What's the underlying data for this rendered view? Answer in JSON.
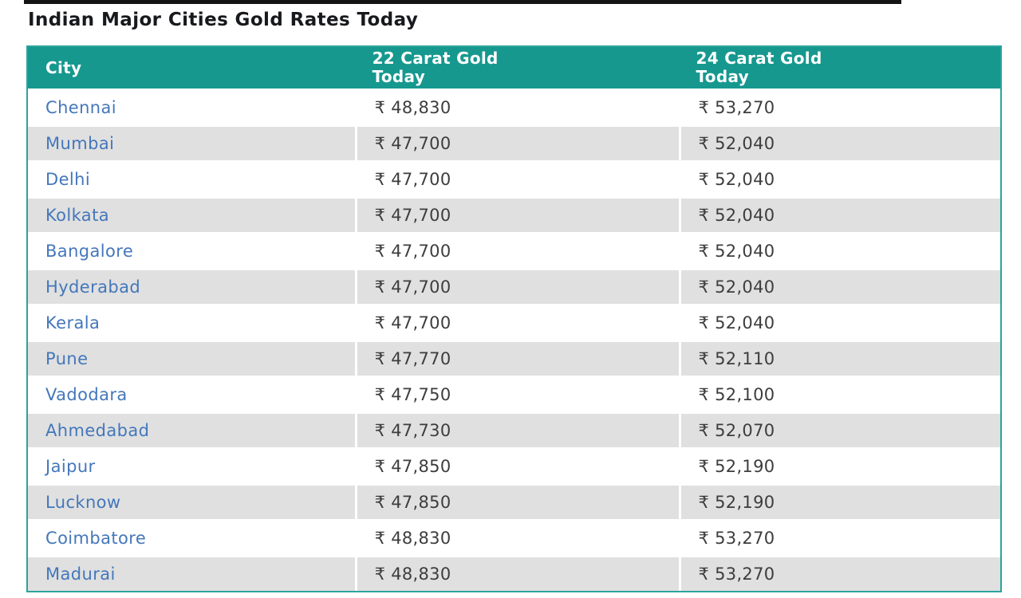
{
  "page": {
    "title": "Indian Major Cities Gold Rates Today"
  },
  "table": {
    "columns": [
      {
        "label": "City"
      },
      {
        "label": "22 Carat Gold Today"
      },
      {
        "label": "24 Carat Gold Today"
      }
    ],
    "rows": [
      {
        "city": "Chennai",
        "carat22": "₹ 48,830",
        "carat24": "₹ 53,270"
      },
      {
        "city": "Mumbai",
        "carat22": "₹ 47,700",
        "carat24": "₹ 52,040"
      },
      {
        "city": "Delhi",
        "carat22": "₹ 47,700",
        "carat24": "₹ 52,040"
      },
      {
        "city": "Kolkata",
        "carat22": "₹ 47,700",
        "carat24": "₹ 52,040"
      },
      {
        "city": "Bangalore",
        "carat22": "₹ 47,700",
        "carat24": "₹ 52,040"
      },
      {
        "city": "Hyderabad",
        "carat22": "₹ 47,700",
        "carat24": "₹ 52,040"
      },
      {
        "city": "Kerala",
        "carat22": "₹ 47,700",
        "carat24": "₹ 52,040"
      },
      {
        "city": "Pune",
        "carat22": "₹ 47,770",
        "carat24": "₹ 52,110"
      },
      {
        "city": "Vadodara",
        "carat22": "₹ 47,750",
        "carat24": "₹ 52,100"
      },
      {
        "city": "Ahmedabad",
        "carat22": "₹ 47,730",
        "carat24": "₹ 52,070"
      },
      {
        "city": "Jaipur",
        "carat22": "₹ 47,850",
        "carat24": "₹ 52,190"
      },
      {
        "city": "Lucknow",
        "carat22": "₹ 47,850",
        "carat24": "₹ 52,190"
      },
      {
        "city": "Coimbatore",
        "carat22": "₹ 48,830",
        "carat24": "₹ 53,270"
      },
      {
        "city": "Madurai",
        "carat22": "₹ 48,830",
        "carat24": "₹ 53,270"
      }
    ]
  },
  "colors": {
    "header_bg": "#16988f",
    "table_border": "#2ba49d",
    "row_alt_bg": "#e0e0e0",
    "link_color": "#4477bb",
    "value_color": "#3d3d3d",
    "title_color": "#17191c",
    "top_bar": "#141414"
  }
}
